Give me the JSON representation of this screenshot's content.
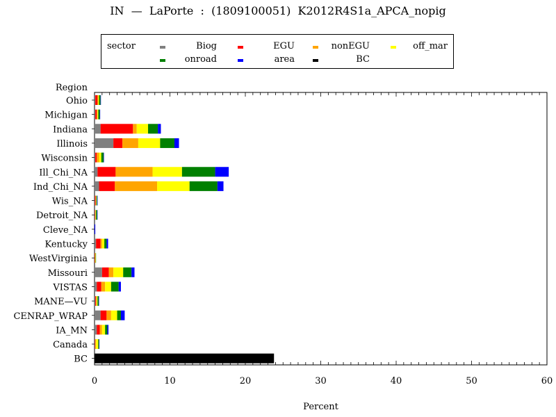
{
  "chart_data": {
    "type": "bar",
    "orientation": "horizontal",
    "stacked": true,
    "title": "IN  —  LaPorte  :  (1809100051)  K2012R4S1a_APCA_nopig",
    "xlabel": "Percent",
    "ylabel": "Region",
    "xlim": [
      0,
      60
    ],
    "x_ticks": [
      "0",
      "10",
      "20",
      "30",
      "40",
      "50",
      "60"
    ],
    "grid": false,
    "legend_title": "sector",
    "legend_position": "top",
    "categories": [
      "Ohio",
      "Michigan",
      "Indiana",
      "Illinois",
      "Wisconsin",
      "Ill_Chi_NA",
      "Ind_Chi_NA",
      "Wis_NA",
      "Detroit_NA",
      "Cleve_NA",
      "Kentucky",
      "WestVirginia",
      "Missouri",
      "VISTAS",
      "MANE—VU",
      "CENRAP_WRAP",
      "IA_MN",
      "Canada",
      "BC"
    ],
    "series": [
      {
        "name": "Biog",
        "color": "#808080",
        "values": [
          0.1,
          0.1,
          0.8,
          2.5,
          0.1,
          0.4,
          0.6,
          0.05,
          0.05,
          0.0,
          0.2,
          0.0,
          1.0,
          0.3,
          0.1,
          0.8,
          0.3,
          0.05,
          0.0
        ]
      },
      {
        "name": "EGU",
        "color": "#ff0000",
        "values": [
          0.3,
          0.2,
          4.3,
          1.2,
          0.2,
          2.4,
          2.1,
          0.1,
          0.05,
          0.0,
          0.6,
          0.05,
          0.9,
          0.6,
          0.1,
          0.8,
          0.4,
          0.05,
          0.0
        ]
      },
      {
        "name": "nonEGU",
        "color": "#ffa500",
        "values": [
          0.1,
          0.1,
          0.5,
          2.1,
          0.3,
          4.9,
          5.6,
          0.05,
          0.05,
          0.0,
          0.2,
          0.05,
          0.6,
          0.5,
          0.1,
          0.6,
          0.3,
          0.1,
          0.0
        ]
      },
      {
        "name": "off_mar",
        "color": "#ffff00",
        "values": [
          0.1,
          0.1,
          1.5,
          2.9,
          0.3,
          3.9,
          4.3,
          0.05,
          0.05,
          0.0,
          0.3,
          0.05,
          1.3,
          0.8,
          0.1,
          0.8,
          0.4,
          0.3,
          0.0
        ]
      },
      {
        "name": "onroad",
        "color": "#008000",
        "values": [
          0.2,
          0.2,
          1.3,
          1.9,
          0.3,
          4.4,
          3.7,
          0.1,
          0.15,
          0.0,
          0.3,
          0.05,
          1.1,
          1.0,
          0.15,
          0.5,
          0.3,
          0.1,
          0.0
        ]
      },
      {
        "name": "area",
        "color": "#0000ff",
        "values": [
          0.05,
          0.05,
          0.4,
          0.6,
          0.05,
          1.8,
          0.8,
          0.05,
          0.05,
          0.1,
          0.2,
          0.0,
          0.4,
          0.3,
          0.05,
          0.5,
          0.15,
          0.05,
          0.0
        ]
      },
      {
        "name": "BC",
        "color": "#000000",
        "values": [
          0.0,
          0.0,
          0.0,
          0.0,
          0.0,
          0.0,
          0.0,
          0.0,
          0.0,
          0.0,
          0.0,
          0.0,
          0.0,
          0.0,
          0.0,
          0.0,
          0.0,
          0.0,
          23.8
        ]
      }
    ],
    "legend_layout": [
      {
        "series": 0,
        "row": 0,
        "col": 0
      },
      {
        "series": 1,
        "row": 0,
        "col": 1
      },
      {
        "series": 2,
        "row": 0,
        "col": 2
      },
      {
        "series": 3,
        "row": 0,
        "col": 3
      },
      {
        "series": 4,
        "row": 1,
        "col": 0
      },
      {
        "series": 5,
        "row": 1,
        "col": 1
      },
      {
        "series": 6,
        "row": 1,
        "col": 2
      }
    ]
  }
}
